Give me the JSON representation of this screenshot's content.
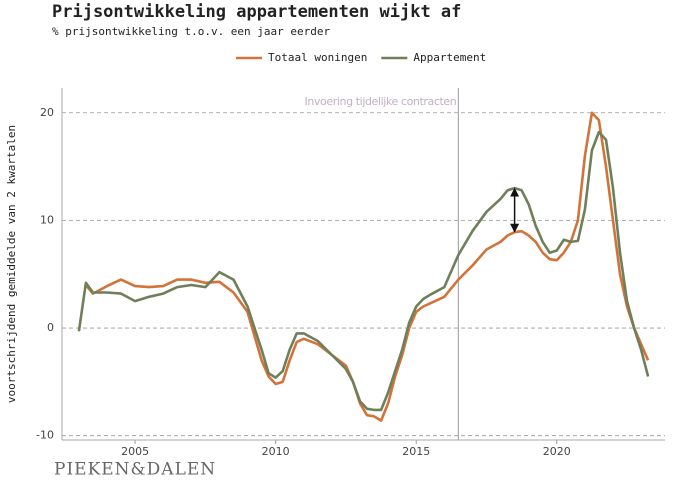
{
  "chart_data": {
    "type": "line",
    "title": "Prijsontwikkeling appartementen wijkt af",
    "subtitle": "% prijsontwikkeling t.o.v. een jaar eerder",
    "y_label": "voortschrijdend gemiddelde van 2 kwartalen",
    "source": "PIEKEN&DALEN",
    "annotations": [
      {
        "text": "Invoering tijdelijke contracten",
        "x": 2016.5
      }
    ],
    "x": [
      2003.0,
      2003.25,
      2003.5,
      2004.0,
      2004.5,
      2005.0,
      2005.5,
      2006.0,
      2006.5,
      2007.0,
      2007.5,
      2008.0,
      2008.5,
      2009.0,
      2009.5,
      2009.75,
      2010.0,
      2010.25,
      2010.5,
      2010.75,
      2011.0,
      2011.5,
      2012.0,
      2012.5,
      2012.75,
      2013.0,
      2013.25,
      2013.5,
      2013.75,
      2014.0,
      2014.25,
      2014.5,
      2014.75,
      2015.0,
      2015.25,
      2015.5,
      2016.0,
      2016.5,
      2017.0,
      2017.5,
      2018.0,
      2018.25,
      2018.5,
      2018.75,
      2019.0,
      2019.25,
      2019.5,
      2019.75,
      2020.0,
      2020.25,
      2020.5,
      2020.75,
      2021.0,
      2021.25,
      2021.5,
      2021.75,
      2022.0,
      2022.25,
      2022.5,
      2022.75,
      2023.0,
      2023.25
    ],
    "series": [
      {
        "name": "Totaal woningen",
        "color": "#d2733a",
        "values": [
          null,
          4.0,
          3.2,
          3.9,
          4.5,
          3.9,
          3.8,
          3.9,
          4.5,
          4.5,
          4.2,
          4.3,
          3.3,
          1.5,
          -3.0,
          -4.5,
          -5.2,
          -5.0,
          -3.0,
          -1.3,
          -1.0,
          -1.5,
          -2.5,
          -3.5,
          -5.0,
          -7.0,
          -8.1,
          -8.2,
          -8.6,
          -7.0,
          -4.5,
          -2.5,
          0.0,
          1.5,
          2.0,
          2.3,
          2.9,
          4.5,
          5.8,
          7.3,
          8.0,
          8.6,
          8.9,
          9.0,
          8.6,
          8.0,
          7.0,
          6.4,
          6.3,
          7.0,
          8.0,
          10.0,
          16.0,
          20.0,
          19.3,
          15.0,
          10.0,
          5.0,
          2.0,
          0.0,
          -1.5,
          -3.0
        ]
      },
      {
        "name": "Appartement",
        "color": "#6f7f5a",
        "values": [
          -0.3,
          4.2,
          3.3,
          3.3,
          3.2,
          2.5,
          2.9,
          3.2,
          3.8,
          4.0,
          3.8,
          5.2,
          4.5,
          2.0,
          -2.0,
          -4.2,
          -4.6,
          -4.0,
          -2.0,
          -0.5,
          -0.5,
          -1.2,
          -2.5,
          -3.8,
          -5.0,
          -6.8,
          -7.5,
          -7.6,
          -7.6,
          -6.0,
          -4.0,
          -2.0,
          0.5,
          2.0,
          2.7,
          3.1,
          3.8,
          6.8,
          9.0,
          10.8,
          12.0,
          12.8,
          13.0,
          12.8,
          11.5,
          9.5,
          8.0,
          7.0,
          7.2,
          8.2,
          8.0,
          8.1,
          11.0,
          16.5,
          18.2,
          17.5,
          13.0,
          7.0,
          2.5,
          0.0,
          -2.0,
          -4.5
        ]
      }
    ],
    "xlim": [
      2002.4,
      2023.85
    ],
    "ylim": [
      -10.4,
      22.3
    ],
    "xticks": [
      2005,
      2010,
      2015,
      2020
    ],
    "yticks": [
      -10,
      0,
      10,
      20
    ],
    "grid": true,
    "legend": "top"
  }
}
